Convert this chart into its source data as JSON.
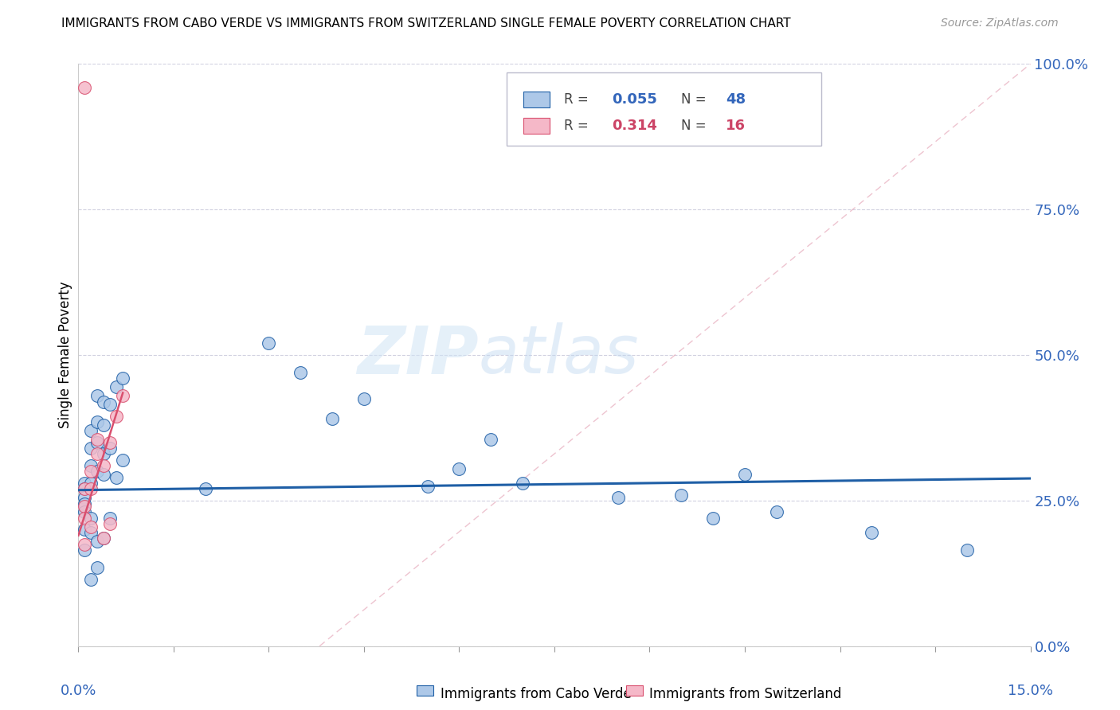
{
  "title": "IMMIGRANTS FROM CABO VERDE VS IMMIGRANTS FROM SWITZERLAND SINGLE FEMALE POVERTY CORRELATION CHART",
  "source": "Source: ZipAtlas.com",
  "ylabel": "Single Female Poverty",
  "legend_blue_r": "0.055",
  "legend_blue_n": "48",
  "legend_pink_r": "0.314",
  "legend_pink_n": "16",
  "legend_blue_label": "Immigrants from Cabo Verde",
  "legend_pink_label": "Immigrants from Switzerland",
  "color_blue": "#adc8e8",
  "color_blue_line": "#1f5fa6",
  "color_pink": "#f5b8c8",
  "color_pink_line": "#d94f6e",
  "color_diag": "#e8b0c0",
  "watermark_zip": "ZIP",
  "watermark_atlas": "atlas",
  "xlim": [
    0.0,
    0.15
  ],
  "ylim": [
    0.0,
    1.0
  ],
  "cabo_x": [
    0.001,
    0.001,
    0.001,
    0.001,
    0.001,
    0.001,
    0.001,
    0.002,
    0.002,
    0.002,
    0.002,
    0.002,
    0.002,
    0.002,
    0.003,
    0.003,
    0.003,
    0.003,
    0.003,
    0.003,
    0.004,
    0.004,
    0.004,
    0.004,
    0.004,
    0.005,
    0.005,
    0.005,
    0.006,
    0.006,
    0.007,
    0.007,
    0.02,
    0.03,
    0.035,
    0.04,
    0.045,
    0.055,
    0.06,
    0.065,
    0.07,
    0.085,
    0.095,
    0.1,
    0.105,
    0.11,
    0.125,
    0.14
  ],
  "cabo_y": [
    0.28,
    0.27,
    0.255,
    0.245,
    0.23,
    0.2,
    0.165,
    0.37,
    0.34,
    0.31,
    0.28,
    0.22,
    0.195,
    0.115,
    0.43,
    0.385,
    0.35,
    0.3,
    0.18,
    0.135,
    0.42,
    0.38,
    0.33,
    0.295,
    0.185,
    0.415,
    0.34,
    0.22,
    0.445,
    0.29,
    0.46,
    0.32,
    0.27,
    0.52,
    0.47,
    0.39,
    0.425,
    0.275,
    0.305,
    0.355,
    0.28,
    0.255,
    0.26,
    0.22,
    0.295,
    0.23,
    0.195,
    0.165
  ],
  "swiss_x": [
    0.001,
    0.001,
    0.001,
    0.001,
    0.001,
    0.002,
    0.002,
    0.002,
    0.003,
    0.003,
    0.004,
    0.004,
    0.005,
    0.005,
    0.006,
    0.007
  ],
  "swiss_y": [
    0.96,
    0.27,
    0.24,
    0.22,
    0.175,
    0.3,
    0.27,
    0.205,
    0.355,
    0.33,
    0.31,
    0.185,
    0.35,
    0.21,
    0.395,
    0.43
  ],
  "blue_trend_x0": 0.0,
  "blue_trend_y0": 0.268,
  "blue_trend_x1": 0.15,
  "blue_trend_y1": 0.288,
  "pink_trend_x0": 0.0,
  "pink_trend_y0": 0.19,
  "pink_trend_x1": 0.007,
  "pink_trend_y1": 0.435
}
